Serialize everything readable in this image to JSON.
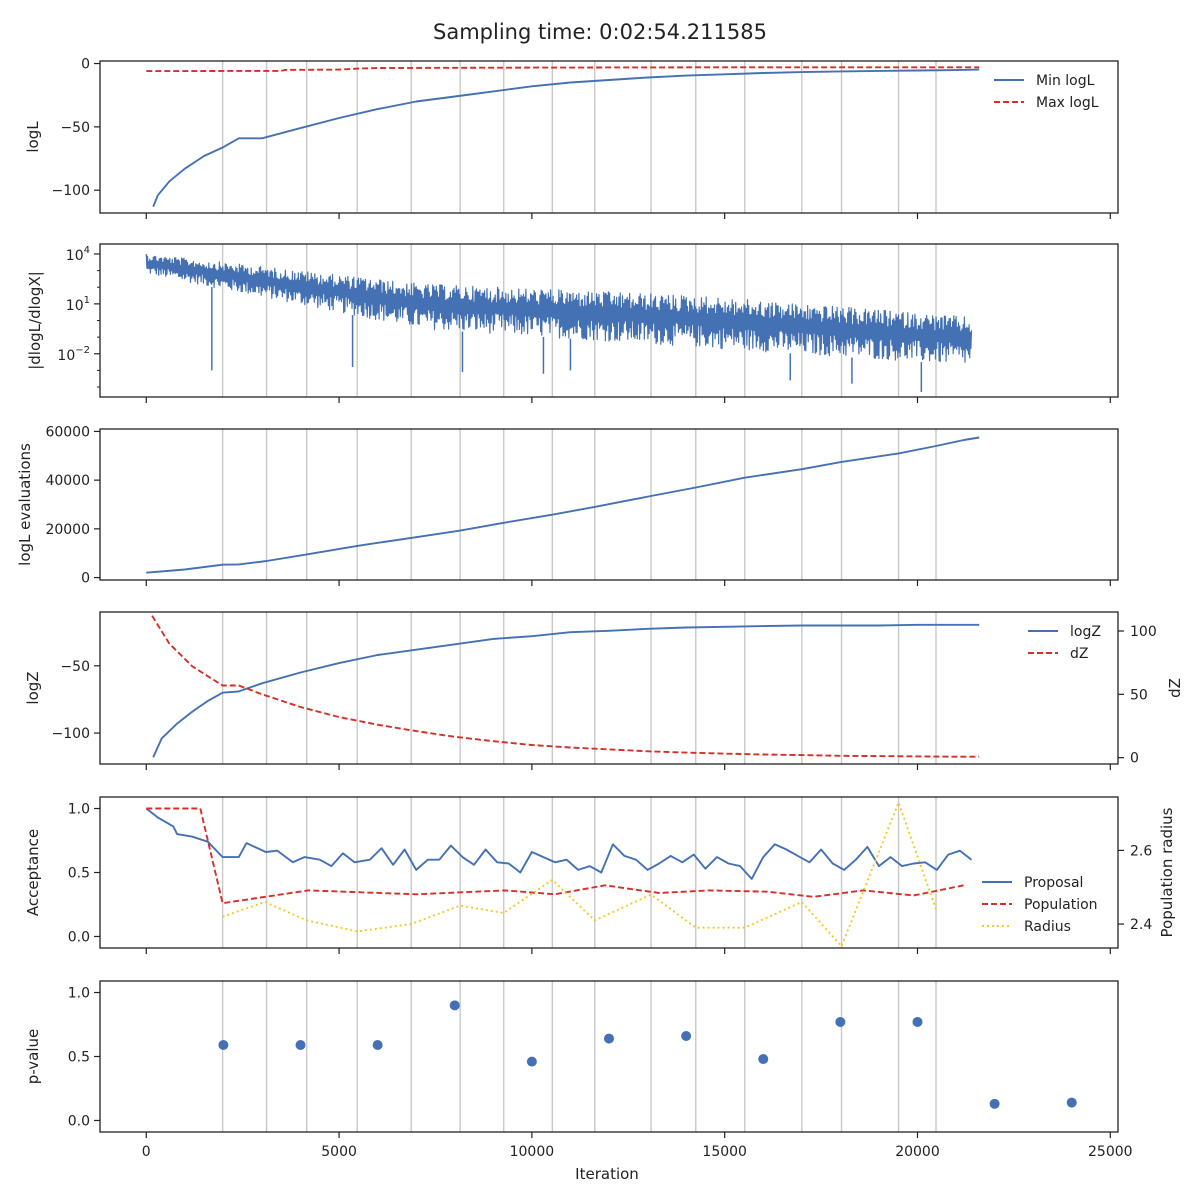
{
  "figure": {
    "title": "Sampling time: 0:02:54.211585",
    "x_axis_label": "Iteration",
    "x_ticks": [
      0,
      5000,
      10000,
      15000,
      20000,
      25000
    ],
    "x_tick_labels": [
      "0",
      "5000",
      "10000",
      "15000",
      "20000",
      "25000"
    ],
    "x_range": [
      -1200,
      25200
    ],
    "vlines_insertion_test": [
      1980,
      3120,
      4160,
      5470,
      6870,
      8140,
      9270,
      10530,
      11630,
      13090,
      14250,
      15520,
      17000,
      18030,
      19510,
      20480
    ]
  },
  "colors": {
    "blue": "#4471b4",
    "red": "#d62f27",
    "gold": "#f5c824",
    "grid": "#c8c8c8",
    "axis": "#222222"
  },
  "chart_data": [
    {
      "type": "line",
      "panel": "logL",
      "ylabel": "logL",
      "ylim": [
        -118,
        2
      ],
      "yticks": [
        0,
        -50,
        -100
      ],
      "ytick_labels": [
        "0",
        "−50",
        "−100"
      ],
      "legend": "top-right",
      "series": [
        {
          "name": "Min logL",
          "color": "blue",
          "style": "solid",
          "x": [
            180,
            300,
            600,
            1000,
            1500,
            2000,
            2400,
            3000,
            4000,
            5000,
            6000,
            7000,
            8000,
            9000,
            10000,
            11000,
            12000,
            13000,
            14000,
            15000,
            16000,
            17000,
            18000,
            19000,
            20000,
            21000,
            21600
          ],
          "y": [
            -113,
            -104,
            -93,
            -83,
            -73,
            -66,
            -59,
            -59,
            -51,
            -43,
            -36,
            -30,
            -26,
            -22,
            -18,
            -15,
            -13,
            -11,
            -9.5,
            -8.5,
            -7.5,
            -6.8,
            -6.2,
            -5.8,
            -5.5,
            -5.2,
            -4.8
          ]
        },
        {
          "name": "Max logL",
          "color": "red",
          "style": "dashed",
          "x": [
            0,
            3500,
            3600,
            5000,
            5500,
            6000,
            10000,
            15000,
            21600
          ],
          "y": [
            -6,
            -5.8,
            -5,
            -4.8,
            -4,
            -3.5,
            -3.2,
            -3,
            -3
          ]
        }
      ]
    },
    {
      "type": "line",
      "panel": "dlogL_dlogX",
      "ylabel": "|dlogL/dlogX|",
      "yscale": "log",
      "ylim_exponent": [
        -4.6,
        4.6
      ],
      "yticks_exponent": [
        4,
        1,
        -2
      ],
      "ytick_labels": [
        "10",
        "10",
        "10"
      ],
      "ytick_superscripts": [
        "4",
        "1",
        "−2"
      ],
      "series": [
        {
          "name": "",
          "color": "blue",
          "noise_band": true,
          "x_start": 0,
          "x_end": 21400,
          "upper_exponent": [
            4.0,
            2.2,
            1.5,
            0.2
          ],
          "lower_exponent": [
            2.8,
            -0.5,
            -1.6,
            -2.7
          ],
          "spikes_x": [
            1700,
            5350,
            8200,
            10300,
            11000,
            16700,
            18300,
            20100
          ],
          "spikes_exponent": [
            -3.0,
            -2.8,
            -3.1,
            -3.2,
            -3.0,
            -3.6,
            -3.8,
            -4.3
          ]
        }
      ]
    },
    {
      "type": "line",
      "panel": "logL evaluations",
      "ylabel": "logL evaluations",
      "ylim": [
        -1000,
        61000
      ],
      "yticks": [
        0,
        20000,
        40000,
        60000
      ],
      "ytick_labels": [
        "0",
        "20000",
        "40000",
        "60000"
      ],
      "series": [
        {
          "name": "",
          "color": "blue",
          "style": "solid",
          "x": [
            0,
            1000,
            1980,
            2400,
            3120,
            4160,
            5470,
            6870,
            8140,
            9270,
            10530,
            11630,
            13090,
            14250,
            15520,
            17000,
            18030,
            19510,
            20480,
            21200,
            21600
          ],
          "y": [
            2000,
            3300,
            5300,
            5400,
            6800,
            9500,
            13000,
            16300,
            19300,
            22500,
            25800,
            29000,
            33500,
            37000,
            41000,
            44500,
            47500,
            51000,
            54000,
            56500,
            57500
          ]
        }
      ]
    },
    {
      "type": "line",
      "panel": "logZ",
      "ylabel": "logZ",
      "ylabel_right": "dZ",
      "ylim": [
        -123,
        -10
      ],
      "yticks": [
        -50,
        -100
      ],
      "ytick_labels": [
        "−50",
        "−100"
      ],
      "ylim_right": [
        -5,
        115
      ],
      "yticks_right": [
        0,
        50,
        100
      ],
      "ytick_labels_right": [
        "0",
        "50",
        "100"
      ],
      "legend": "top-right",
      "series": [
        {
          "name": "logZ",
          "color": "blue",
          "style": "solid",
          "axis": "left",
          "x": [
            180,
            400,
            800,
            1200,
            1600,
            1980,
            2400,
            3000,
            4000,
            5000,
            6000,
            7000,
            8000,
            9000,
            10000,
            11000,
            12000,
            13000,
            14000,
            15000,
            16000,
            17000,
            18000,
            19000,
            20000,
            21000,
            21600
          ],
          "y": [
            -118,
            -104,
            -93,
            -84,
            -76,
            -70,
            -69,
            -63,
            -55,
            -48,
            -42,
            -38,
            -34,
            -30,
            -28,
            -25,
            -24,
            -22.5,
            -21.5,
            -21,
            -20.5,
            -20,
            -20,
            -20,
            -19.5,
            -19.5,
            -19.5
          ]
        },
        {
          "name": "dZ",
          "color": "red",
          "style": "dashed",
          "axis": "right",
          "x": [
            150,
            600,
            1200,
            1980,
            2400,
            3000,
            4000,
            5000,
            6000,
            7000,
            8000,
            9000,
            10000,
            11000,
            12000,
            13000,
            14000,
            15000,
            16000,
            17000,
            18000,
            19000,
            20000,
            21000,
            21600
          ],
          "y": [
            112,
            90,
            72,
            57,
            57,
            50,
            40,
            32,
            26,
            21,
            16.5,
            13,
            10,
            8,
            6.5,
            5,
            4,
            3.2,
            2.5,
            2,
            1.5,
            1.2,
            1,
            0.8,
            0.8
          ]
        }
      ]
    },
    {
      "type": "line",
      "panel": "Acceptance",
      "ylabel": "Acceptance",
      "ylabel_right": "Population radius",
      "ylim": [
        -0.09,
        1.09
      ],
      "yticks": [
        0.0,
        0.5,
        1.0
      ],
      "ytick_labels": [
        "0.0",
        "0.5",
        "1.0"
      ],
      "ylim_right": [
        2.335,
        2.745
      ],
      "yticks_right": [
        2.4,
        2.6
      ],
      "ytick_labels_right": [
        "2.4",
        "2.6"
      ],
      "legend": "lower-right",
      "series": [
        {
          "name": "Proposal",
          "color": "blue",
          "style": "solid",
          "axis": "left",
          "x": [
            0,
            300,
            700,
            800,
            1200,
            1600,
            1980,
            2400,
            2600,
            3100,
            3400,
            3800,
            4100,
            4500,
            4800,
            5100,
            5400,
            5800,
            6100,
            6400,
            6700,
            7000,
            7300,
            7600,
            7900,
            8200,
            8500,
            8800,
            9100,
            9400,
            9700,
            10000,
            10300,
            10600,
            10900,
            11200,
            11500,
            11800,
            12100,
            12400,
            12700,
            13000,
            13300,
            13600,
            13900,
            14200,
            14500,
            14800,
            15100,
            15400,
            15700,
            16000,
            16300,
            16600,
            16900,
            17200,
            17500,
            17800,
            18100,
            18400,
            18700,
            19000,
            19300,
            19600,
            19900,
            20200,
            20500,
            20800,
            21100,
            21400
          ],
          "y": [
            1.0,
            0.93,
            0.86,
            0.8,
            0.78,
            0.74,
            0.62,
            0.62,
            0.73,
            0.66,
            0.67,
            0.58,
            0.62,
            0.6,
            0.55,
            0.65,
            0.58,
            0.6,
            0.69,
            0.56,
            0.68,
            0.52,
            0.6,
            0.6,
            0.71,
            0.62,
            0.56,
            0.68,
            0.58,
            0.57,
            0.5,
            0.66,
            0.62,
            0.58,
            0.6,
            0.52,
            0.55,
            0.5,
            0.72,
            0.63,
            0.6,
            0.52,
            0.57,
            0.63,
            0.58,
            0.64,
            0.53,
            0.62,
            0.57,
            0.55,
            0.45,
            0.62,
            0.72,
            0.68,
            0.63,
            0.58,
            0.68,
            0.57,
            0.52,
            0.6,
            0.7,
            0.55,
            0.62,
            0.55,
            0.57,
            0.58,
            0.52,
            0.64,
            0.67,
            0.6
          ]
        },
        {
          "name": "Population",
          "color": "red",
          "style": "dashed",
          "axis": "left",
          "x": [
            0,
            1400,
            1980,
            4200,
            7000,
            9300,
            10600,
            11900,
            13300,
            14600,
            16100,
            17300,
            18600,
            19900,
            21200
          ],
          "y": [
            1.0,
            1.0,
            0.26,
            0.36,
            0.33,
            0.36,
            0.33,
            0.4,
            0.34,
            0.36,
            0.35,
            0.31,
            0.36,
            0.32,
            0.4
          ]
        },
        {
          "name": "Radius",
          "color": "gold",
          "style": "dotted",
          "axis": "right",
          "x": [
            1980,
            3080,
            4160,
            5470,
            6870,
            8140,
            9270,
            10530,
            11630,
            13090,
            14250,
            15520,
            17000,
            18030,
            19510,
            20480
          ],
          "y": [
            2.42,
            2.46,
            2.41,
            2.38,
            2.4,
            2.45,
            2.43,
            2.52,
            2.41,
            2.48,
            2.39,
            2.39,
            2.46,
            2.34,
            2.73,
            2.44
          ]
        }
      ]
    },
    {
      "type": "scatter",
      "panel": "p-value",
      "ylabel": "p-value",
      "ylim": [
        -0.09,
        1.09
      ],
      "yticks": [
        0.0,
        0.5,
        1.0
      ],
      "ytick_labels": [
        "0.0",
        "0.5",
        "1.0"
      ],
      "series": [
        {
          "name": "",
          "color": "blue",
          "x": [
            2000,
            4000,
            6000,
            8000,
            10000,
            12000,
            14000,
            16000,
            18000,
            20000,
            22000,
            24000
          ],
          "y": [
            0.59,
            0.59,
            0.59,
            0.9,
            0.46,
            0.64,
            0.66,
            0.48,
            0.77,
            0.77,
            0.13,
            0.14
          ]
        }
      ]
    }
  ]
}
